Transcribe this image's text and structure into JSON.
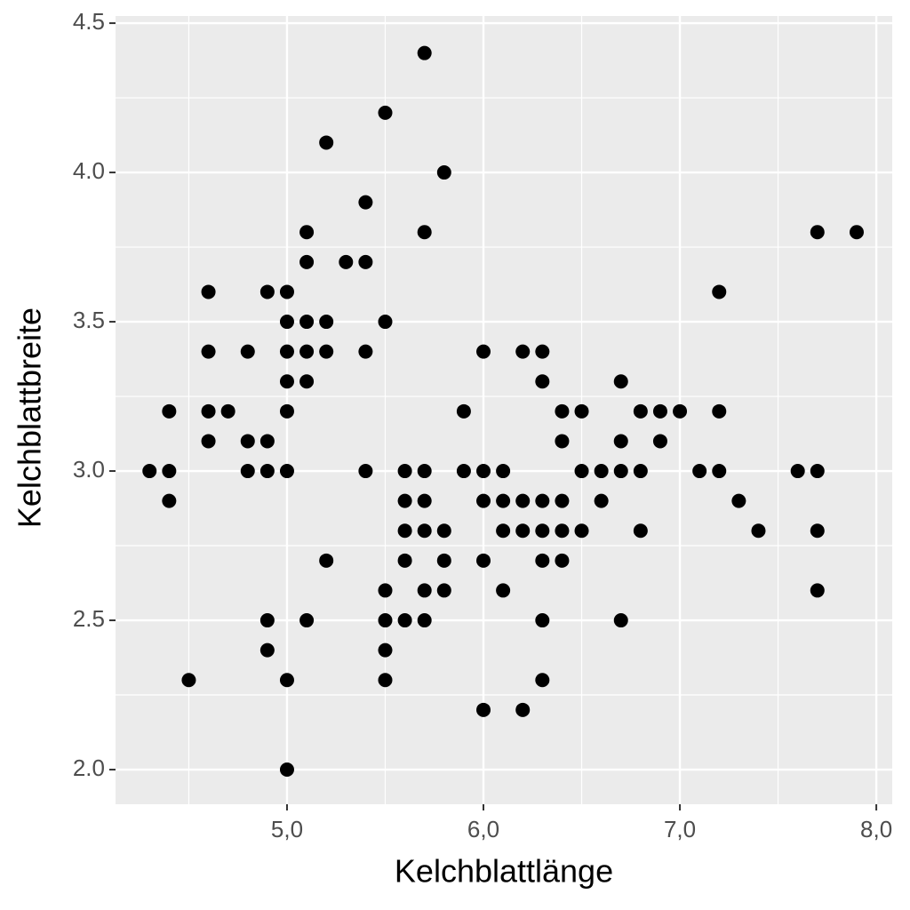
{
  "chart_data": {
    "type": "scatter",
    "x_label": "Kelchblattlänge",
    "y_label": "Kelchblattbreite",
    "series": [
      {
        "color": "#000000",
        "x": [
          5.7,
          5.5,
          5.2,
          5.8,
          5.4,
          5.1,
          5.7,
          7.7,
          7.9,
          5.1,
          5.3,
          5.4,
          4.6,
          4.9,
          5.0,
          7.2,
          5.0,
          5.1,
          5.2,
          5.5,
          4.6,
          4.8,
          5.0,
          5.1,
          5.2,
          5.4,
          6.0,
          6.2,
          6.3,
          5.0,
          5.1,
          6.3,
          6.7,
          4.4,
          4.6,
          4.7,
          5.0,
          5.9,
          6.4,
          6.5,
          6.8,
          6.9,
          7.0,
          7.2,
          4.6,
          4.8,
          4.9,
          6.4,
          6.7,
          6.9,
          4.3,
          4.4,
          4.8,
          4.9,
          5.0,
          5.4,
          5.6,
          5.7,
          5.9,
          6.0,
          6.1,
          6.5,
          6.6,
          6.7,
          6.8,
          7.1,
          7.2,
          7.6,
          7.7,
          4.4,
          5.6,
          5.7,
          6.0,
          6.1,
          6.2,
          6.3,
          6.4,
          6.6,
          7.3,
          5.6,
          5.7,
          5.8,
          6.1,
          6.2,
          6.3,
          6.4,
          6.5,
          6.8,
          7.4,
          7.7,
          5.2,
          5.6,
          5.8,
          6.0,
          6.3,
          6.4,
          5.5,
          5.7,
          5.8,
          6.1,
          7.7,
          4.9,
          5.1,
          5.5,
          5.6,
          5.7,
          6.3,
          6.7,
          4.9,
          5.5,
          4.5,
          5.0,
          5.5,
          6.3,
          6.0,
          6.2,
          5.0
        ],
        "y": [
          4.4,
          4.2,
          4.1,
          4.0,
          3.9,
          3.8,
          3.8,
          3.8,
          3.8,
          3.7,
          3.7,
          3.7,
          3.6,
          3.6,
          3.6,
          3.6,
          3.5,
          3.5,
          3.5,
          3.5,
          3.4,
          3.4,
          3.4,
          3.4,
          3.4,
          3.4,
          3.4,
          3.4,
          3.4,
          3.3,
          3.3,
          3.3,
          3.3,
          3.2,
          3.2,
          3.2,
          3.2,
          3.2,
          3.2,
          3.2,
          3.2,
          3.2,
          3.2,
          3.2,
          3.1,
          3.1,
          3.1,
          3.1,
          3.1,
          3.1,
          3.0,
          3.0,
          3.0,
          3.0,
          3.0,
          3.0,
          3.0,
          3.0,
          3.0,
          3.0,
          3.0,
          3.0,
          3.0,
          3.0,
          3.0,
          3.0,
          3.0,
          3.0,
          3.0,
          2.9,
          2.9,
          2.9,
          2.9,
          2.9,
          2.9,
          2.9,
          2.9,
          2.9,
          2.9,
          2.8,
          2.8,
          2.8,
          2.8,
          2.8,
          2.8,
          2.8,
          2.8,
          2.8,
          2.8,
          2.8,
          2.7,
          2.7,
          2.7,
          2.7,
          2.7,
          2.7,
          2.6,
          2.6,
          2.6,
          2.6,
          2.6,
          2.5,
          2.5,
          2.5,
          2.5,
          2.5,
          2.5,
          2.5,
          2.4,
          2.4,
          2.3,
          2.3,
          2.3,
          2.3,
          2.2,
          2.2,
          2.0
        ]
      }
    ],
    "xlim": [
      4.127,
      8.081
    ],
    "ylim": [
      1.884,
      4.524
    ],
    "xticks": [
      {
        "value": 5,
        "label": "5,0"
      },
      {
        "value": 6,
        "label": "6,0"
      },
      {
        "value": 7,
        "label": "7,0"
      },
      {
        "value": 8,
        "label": "8,0"
      }
    ],
    "yticks": [
      {
        "value": 2,
        "label": "2.0"
      },
      2.5,
      {
        "value": 3,
        "label": "3.0"
      },
      3.5,
      {
        "value": 4,
        "label": "4.0"
      },
      4.5
    ],
    "minor_xticks": [
      4.5,
      5.5,
      6.5,
      7.5
    ],
    "minor_yticks": [
      2.25,
      2.75,
      3.25,
      3.75,
      4.25
    ],
    "grid": true
  }
}
